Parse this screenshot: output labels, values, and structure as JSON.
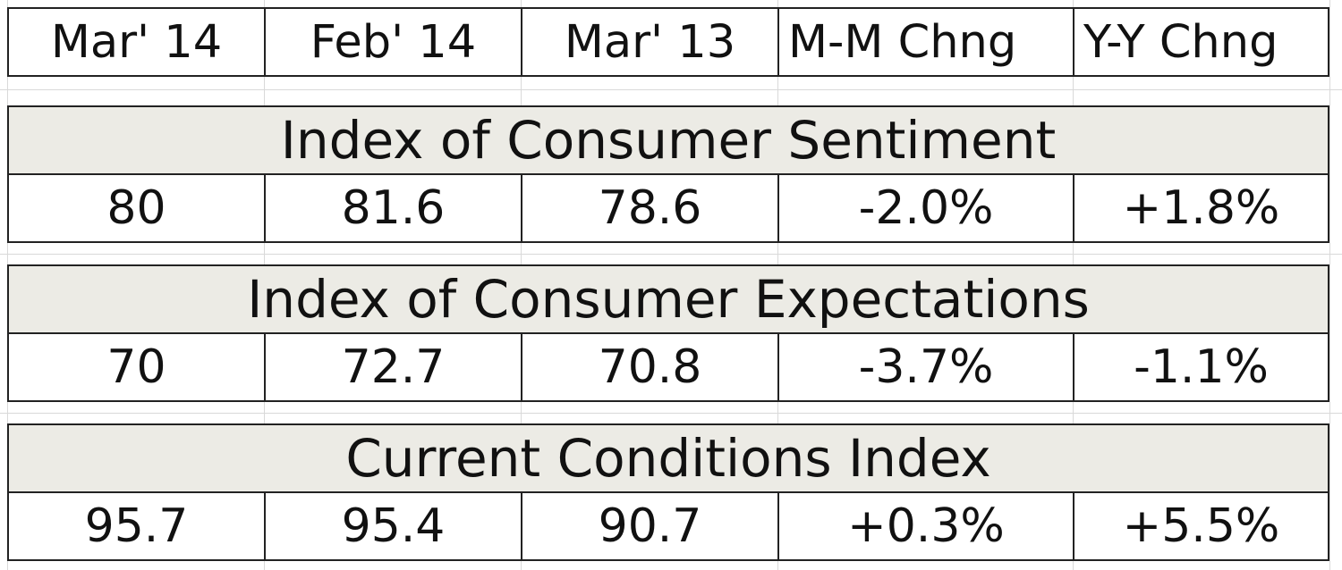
{
  "header": [
    "Mar' 14",
    "Feb' 14",
    "Mar' 13",
    "M-M Chng",
    "Y-Y Chng"
  ],
  "sections": [
    {
      "title": "Index of Consumer Sentiment",
      "values": [
        "80",
        "81.6",
        "78.6",
        "-2.0%",
        "+1.8%"
      ]
    },
    {
      "title": "Index of Consumer Expectations",
      "values": [
        "70",
        "72.7",
        "70.8",
        "-3.7%",
        "-1.1%"
      ]
    },
    {
      "title": "Current Conditions Index",
      "values": [
        "95.7",
        "95.4",
        "90.7",
        "+0.3%",
        "+5.5%"
      ]
    }
  ],
  "colors": {
    "section_fill": "#ecebe5",
    "border": "#222222",
    "gridline": "#d9d9d9"
  }
}
